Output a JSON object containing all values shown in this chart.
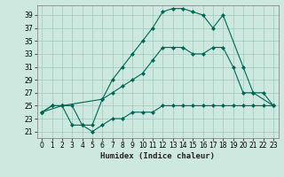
{
  "xlabel": "Humidex (Indice chaleur)",
  "bg_color": "#cce8df",
  "grid_color": "#a0c8bc",
  "line_color": "#006655",
  "xlim": [
    -0.5,
    23.5
  ],
  "ylim": [
    20,
    40.5
  ],
  "xticks": [
    0,
    1,
    2,
    3,
    4,
    5,
    6,
    7,
    8,
    9,
    10,
    11,
    12,
    13,
    14,
    15,
    16,
    17,
    18,
    19,
    20,
    21,
    22,
    23
  ],
  "yticks": [
    21,
    23,
    25,
    27,
    29,
    31,
    33,
    35,
    37,
    39
  ],
  "series1_x": [
    0,
    1,
    2,
    3,
    4,
    5,
    6,
    7,
    8,
    9,
    10,
    11,
    12,
    13,
    14,
    15,
    16,
    17,
    18,
    19,
    20,
    21,
    22,
    23
  ],
  "series1_y": [
    24,
    25,
    25,
    22,
    22,
    21,
    22,
    23,
    23,
    24,
    24,
    24,
    25,
    25,
    25,
    25,
    25,
    25,
    25,
    25,
    25,
    25,
    25,
    25
  ],
  "series2_x": [
    0,
    1,
    2,
    3,
    4,
    5,
    6,
    7,
    8,
    9,
    10,
    11,
    12,
    13,
    14,
    15,
    16,
    17,
    18,
    19,
    20,
    21,
    22,
    23
  ],
  "series2_y": [
    24,
    25,
    25,
    25,
    22,
    22,
    26,
    27,
    28,
    29,
    30,
    32,
    34,
    34,
    34,
    33,
    33,
    34,
    34,
    31,
    27,
    27,
    27,
    25
  ],
  "series3_x": [
    0,
    2,
    6,
    7,
    8,
    9,
    10,
    11,
    12,
    13,
    14,
    15,
    16,
    17,
    18,
    20,
    21,
    23
  ],
  "series3_y": [
    24,
    25,
    26,
    29,
    31,
    33,
    35,
    37,
    39.5,
    40,
    40,
    39.5,
    39,
    37,
    39,
    31,
    27,
    25
  ]
}
